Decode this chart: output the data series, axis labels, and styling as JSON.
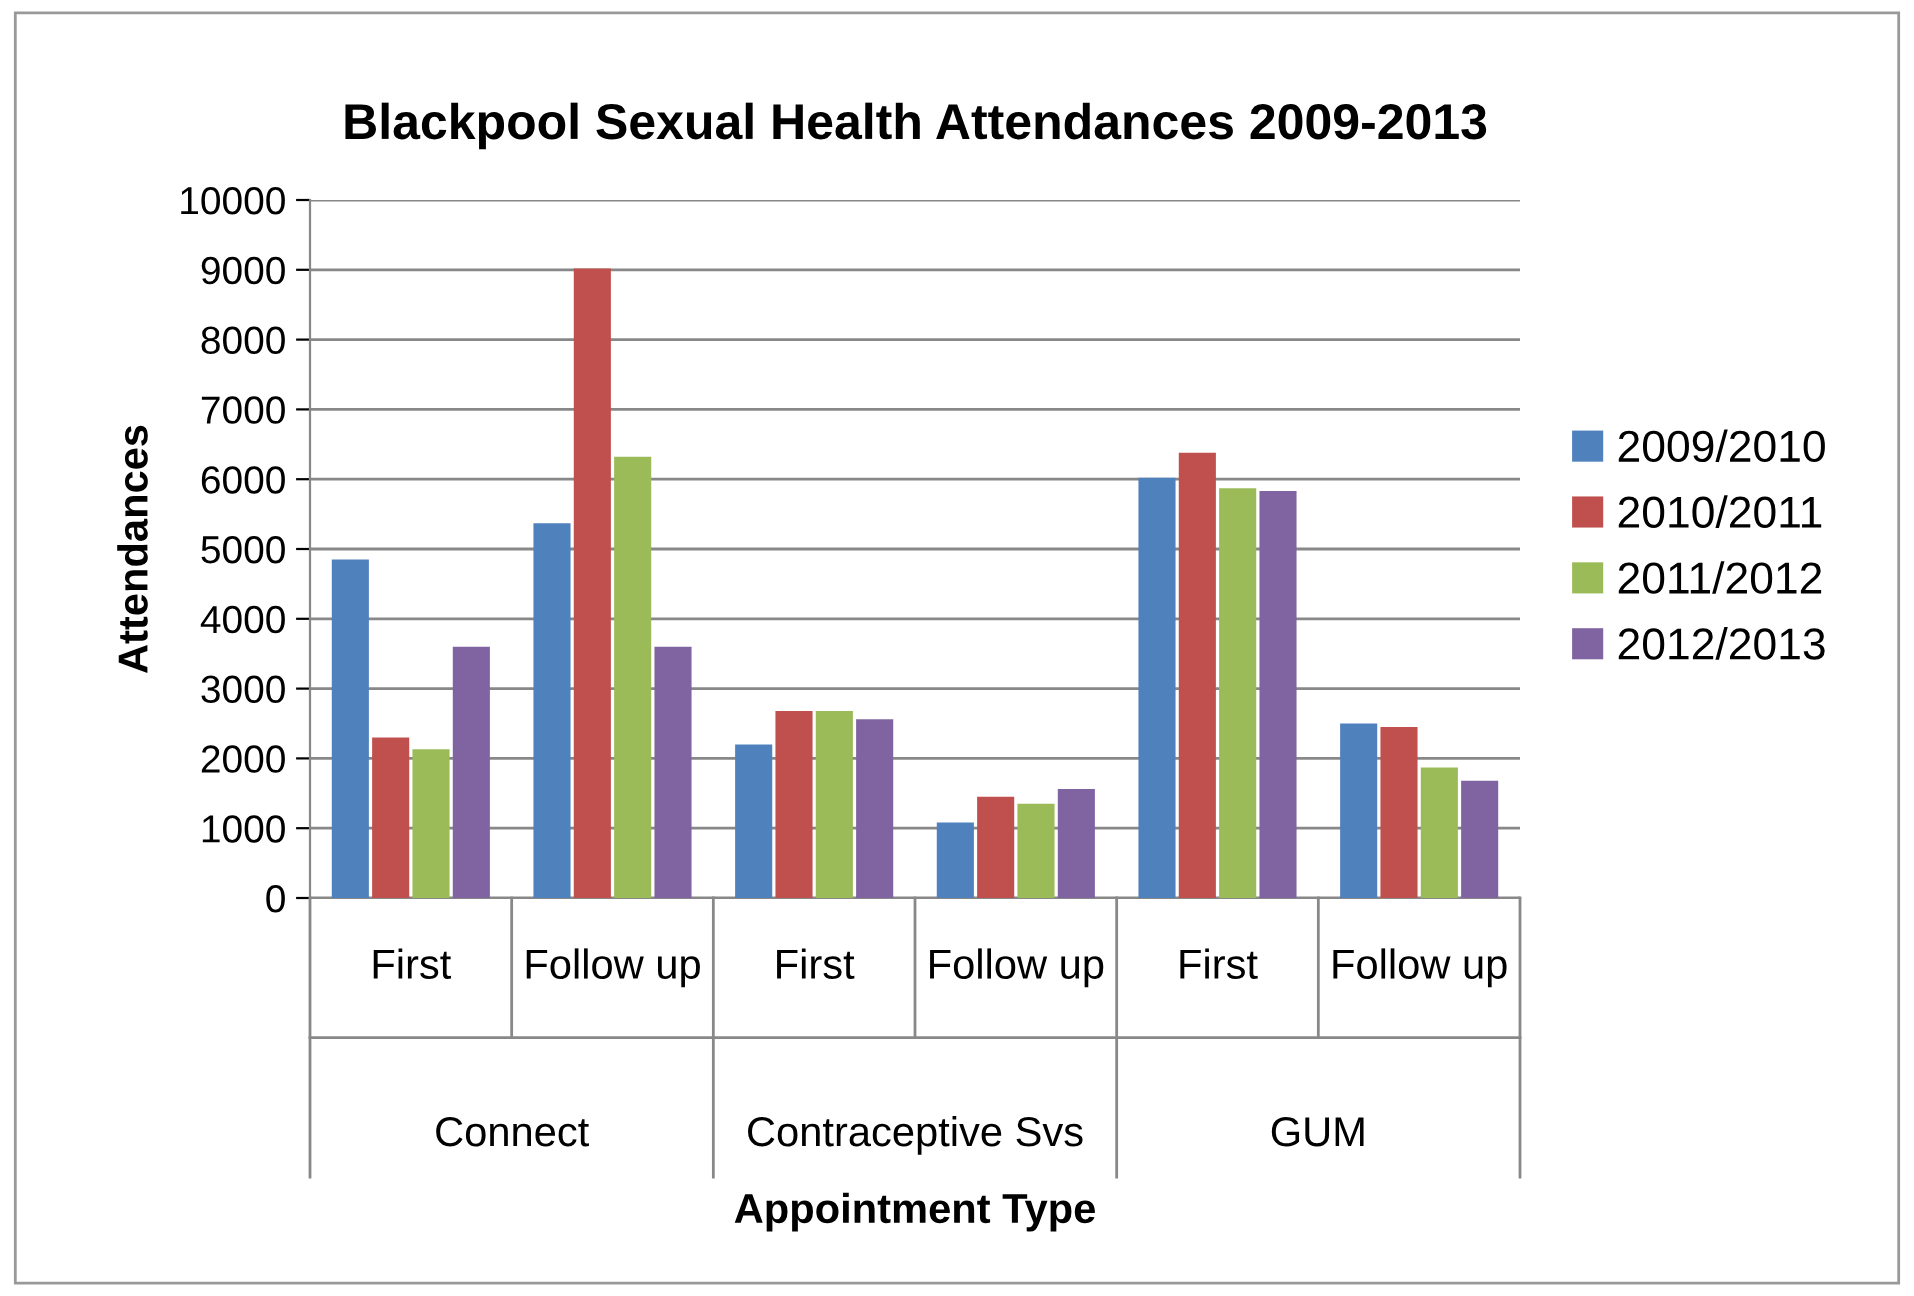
{
  "chart_data": {
    "type": "bar",
    "title": "Blackpool Sexual Health Attendances 2009-2013",
    "ylabel": "Attendances",
    "categories": [
      "First",
      "Follow up",
      "First",
      "Follow up",
      "First",
      "Follow up"
    ],
    "annotations": [
      "Connect",
      "Contraceptive Svs",
      "GUM",
      "Appointment Type"
    ],
    "series": [
      {
        "name": "2009/2010",
        "color": "#4f81bd",
        "values": [
          4850,
          5370,
          2200,
          1080,
          6020,
          2500
        ]
      },
      {
        "name": "2010/2011",
        "color": "#c0504d",
        "values": [
          2300,
          9020,
          2680,
          1450,
          6380,
          2450
        ]
      },
      {
        "name": "2011/2012",
        "color": "#9bbb59",
        "values": [
          2130,
          6320,
          2680,
          1350,
          5870,
          1870
        ]
      },
      {
        "name": "2012/2013",
        "color": "#8064a2",
        "values": [
          3600,
          3600,
          2560,
          1560,
          5830,
          1680
        ]
      }
    ],
    "ylim": [
      0,
      10000
    ],
    "yticks": [
      0,
      1000,
      2000,
      3000,
      4000,
      5000,
      6000,
      7000,
      8000,
      9000,
      10000
    ],
    "grid": "y",
    "legend": "right"
  }
}
